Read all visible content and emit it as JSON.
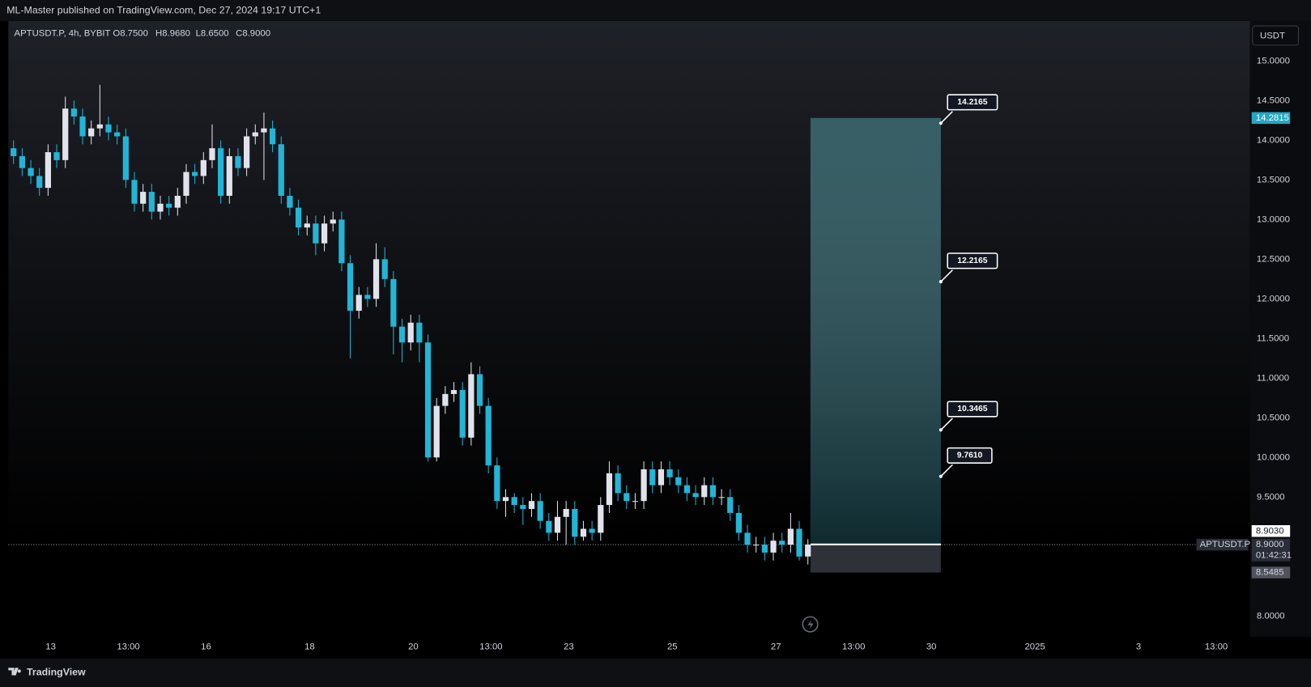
{
  "header": {
    "published": "ML-Master published on TradingView.com, Dec 27, 2024 19:17 UTC+1"
  },
  "chart_data": {
    "type": "candlestick",
    "title": "APTUSDT.P, 4h, BYBIT",
    "ohlc_legend": [
      "O8.7500",
      "H8.9680",
      "L8.6500",
      "C8.9000"
    ],
    "up_color": "#e0e3eb",
    "down_color": "#22b5d6",
    "open": [
      13.9,
      13.8,
      13.65,
      13.55,
      13.4,
      13.85,
      13.75,
      14.4,
      14.3,
      14.05,
      14.15,
      14.2,
      14.1,
      14.05,
      13.5,
      13.2,
      13.35,
      13.1,
      13.2,
      13.15,
      13.3,
      13.6,
      13.55,
      13.75,
      13.9,
      13.3,
      13.8,
      13.65,
      14.05,
      14.1,
      14.15,
      13.95,
      13.3,
      13.15,
      12.9,
      12.95,
      12.7,
      12.95,
      13.0,
      12.45,
      11.85,
      12.05,
      12.0,
      12.5,
      12.25,
      11.65,
      11.45,
      11.7,
      11.45,
      10.0,
      10.65,
      10.8,
      10.85,
      10.25,
      11.05,
      10.65,
      9.9,
      9.45,
      9.5,
      9.4,
      9.35,
      9.45,
      9.2,
      9.05,
      9.25,
      9.35,
      9.0,
      9.1,
      9.05,
      9.4,
      9.8,
      9.55,
      9.45,
      9.45,
      9.85,
      9.65,
      9.85,
      9.75,
      9.65,
      9.55,
      9.5,
      9.65,
      9.5,
      9.5,
      9.3,
      9.05,
      8.9,
      8.9,
      8.8,
      8.95,
      8.9,
      9.1,
      8.75
    ],
    "high": [
      14.0,
      13.9,
      13.75,
      13.65,
      13.95,
      13.95,
      14.55,
      14.5,
      14.4,
      14.25,
      14.7,
      14.3,
      14.2,
      14.15,
      13.6,
      13.45,
      13.45,
      13.3,
      13.3,
      13.4,
      13.7,
      13.7,
      13.85,
      14.2,
      14.0,
      13.9,
      13.9,
      14.15,
      14.2,
      14.35,
      14.25,
      14.05,
      13.4,
      13.25,
      13.05,
      13.05,
      13.05,
      13.1,
      13.1,
      12.55,
      12.15,
      12.15,
      12.7,
      12.65,
      12.35,
      11.75,
      11.8,
      11.8,
      11.55,
      10.75,
      10.9,
      10.95,
      10.95,
      11.2,
      11.15,
      10.75,
      10.0,
      9.6,
      9.55,
      9.5,
      9.55,
      9.55,
      9.3,
      9.45,
      9.45,
      9.45,
      9.2,
      9.2,
      9.5,
      9.95,
      9.9,
      9.65,
      9.55,
      9.95,
      9.95,
      9.95,
      9.95,
      9.85,
      9.75,
      9.65,
      9.75,
      9.75,
      9.6,
      9.6,
      9.4,
      9.15,
      9.0,
      9.0,
      9.05,
      9.05,
      9.3,
      9.2,
      8.968
    ],
    "low": [
      13.7,
      13.55,
      13.45,
      13.3,
      13.3,
      13.65,
      13.65,
      14.2,
      13.95,
      13.95,
      14.05,
      14.0,
      13.95,
      13.4,
      13.1,
      13.1,
      13.0,
      13.0,
      13.05,
      13.05,
      13.2,
      13.45,
      13.45,
      13.65,
      13.2,
      13.2,
      13.55,
      13.55,
      13.95,
      13.5,
      13.85,
      13.2,
      13.05,
      12.8,
      12.8,
      12.55,
      12.6,
      12.85,
      12.35,
      11.25,
      11.75,
      11.9,
      11.9,
      12.15,
      11.3,
      11.2,
      11.35,
      11.2,
      9.95,
      9.95,
      10.55,
      10.7,
      10.15,
      10.15,
      10.55,
      9.8,
      9.35,
      9.25,
      9.3,
      9.15,
      9.25,
      9.1,
      8.95,
      8.95,
      8.9,
      8.9,
      8.95,
      8.95,
      8.95,
      9.3,
      9.45,
      9.35,
      9.35,
      9.35,
      9.55,
      9.55,
      9.65,
      9.55,
      9.45,
      9.4,
      9.4,
      9.4,
      9.4,
      9.2,
      8.95,
      8.8,
      8.8,
      8.7,
      8.7,
      8.8,
      8.8,
      8.7,
      8.65
    ],
    "close": [
      13.8,
      13.65,
      13.55,
      13.4,
      13.85,
      13.75,
      14.4,
      14.3,
      14.05,
      14.15,
      14.2,
      14.1,
      14.05,
      13.5,
      13.2,
      13.35,
      13.1,
      13.2,
      13.15,
      13.3,
      13.6,
      13.55,
      13.75,
      13.9,
      13.3,
      13.8,
      13.65,
      14.05,
      14.1,
      14.15,
      13.95,
      13.3,
      13.15,
      12.9,
      12.95,
      12.7,
      12.95,
      13.0,
      12.45,
      11.85,
      12.05,
      12.0,
      12.5,
      12.25,
      11.65,
      11.45,
      11.7,
      11.45,
      10.0,
      10.65,
      10.8,
      10.85,
      10.25,
      11.05,
      10.65,
      9.9,
      9.45,
      9.5,
      9.4,
      9.35,
      9.45,
      9.2,
      9.05,
      9.25,
      9.35,
      9.0,
      9.1,
      9.05,
      9.4,
      9.8,
      9.55,
      9.45,
      9.45,
      9.85,
      9.65,
      9.85,
      9.75,
      9.65,
      9.55,
      9.5,
      9.65,
      9.5,
      9.5,
      9.3,
      9.05,
      8.9,
      8.9,
      8.8,
      8.95,
      8.9,
      9.1,
      8.75,
      8.9
    ],
    "xlim": [
      -0.6,
      143.2
    ],
    "xticks": [
      {
        "value": 4.3,
        "label": "13"
      },
      {
        "value": 13.3,
        "label": "13:00"
      },
      {
        "value": 22.3,
        "label": "16"
      },
      {
        "value": 34.3,
        "label": "18"
      },
      {
        "value": 46.3,
        "label": "20"
      },
      {
        "value": 55.3,
        "label": "13:00"
      },
      {
        "value": 64.3,
        "label": "23"
      },
      {
        "value": 76.3,
        "label": "25"
      },
      {
        "value": 88.3,
        "label": "27"
      },
      {
        "value": 97.3,
        "label": "13:00"
      },
      {
        "value": 106.3,
        "label": "30"
      },
      {
        "value": 118.3,
        "label": "2025"
      },
      {
        "value": 130.3,
        "label": "3"
      },
      {
        "value": 139.3,
        "label": "13:00"
      }
    ],
    "ylim": [
      7.737,
      15.506
    ],
    "yticks": [
      {
        "value": 8,
        "label": "8.0000"
      },
      {
        "value": 9.5,
        "label": "9.5000"
      },
      {
        "value": 10,
        "label": "10.0000"
      },
      {
        "value": 10.5,
        "label": "10.5000"
      },
      {
        "value": 11,
        "label": "11.0000"
      },
      {
        "value": 11.5,
        "label": "11.5000"
      },
      {
        "value": 12,
        "label": "12.0000"
      },
      {
        "value": 12.5,
        "label": "12.5000"
      },
      {
        "value": 13,
        "label": "13.0000"
      },
      {
        "value": 13.5,
        "label": "13.5000"
      },
      {
        "value": 14,
        "label": "14.0000"
      },
      {
        "value": 14.5,
        "label": "14.5000"
      },
      {
        "value": 15,
        "label": "15.0000"
      }
    ],
    "currency": "USDT",
    "last_price": {
      "value": 8.9,
      "label": "8.9000",
      "symbol": "APTUSDT.P",
      "countdown": "01:42:31"
    },
    "position": {
      "start": 92.3,
      "end": 107.4,
      "entry": {
        "value": 8.903,
        "label": "8.9030"
      },
      "target": {
        "value": 14.2815,
        "label": "14.2815"
      },
      "stop": {
        "value": 8.5485,
        "label": "8.5485"
      },
      "profit_color": "#1d5862",
      "loss_color": "#3a3d46"
    },
    "targets": [
      14.2165,
      12.2165,
      10.3465,
      9.761
    ],
    "target_labels": [
      "14.2165",
      "12.2165",
      "10.3465",
      "9.7610"
    ]
  },
  "footer": {
    "brand": "TradingView"
  }
}
